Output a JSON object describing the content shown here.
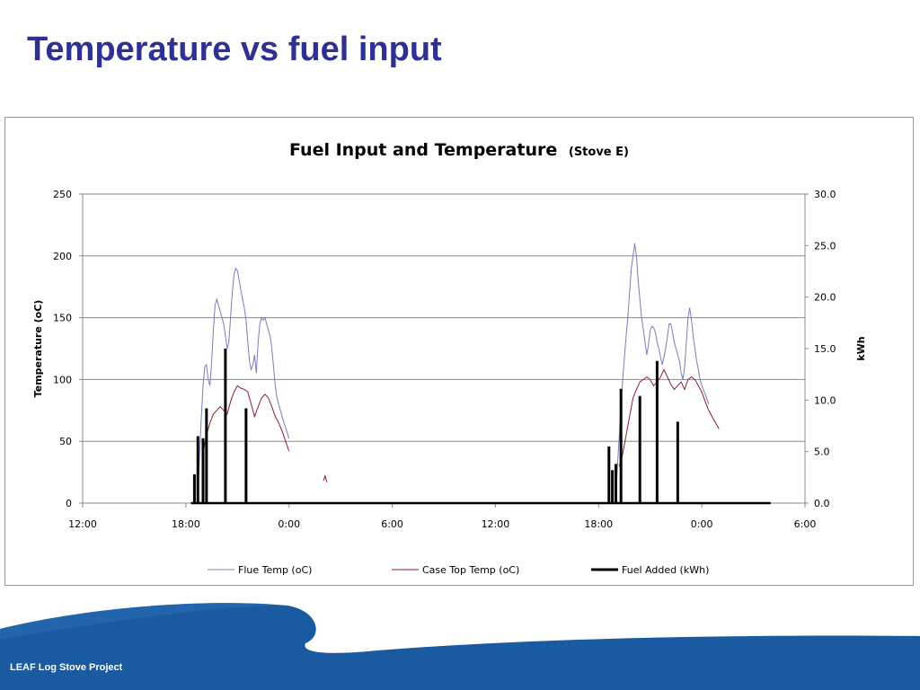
{
  "slide": {
    "title": "Temperature vs fuel input",
    "footer": "LEAF Log Stove Project"
  },
  "colors": {
    "title": "#2e3192",
    "footer_band": "#1a5aa0",
    "footer_band_light": "#1d63ad",
    "flue": "#7b7bb8",
    "case_top": "#8b1a3a",
    "fuel": "#000000",
    "grid": "#888888"
  },
  "chart_data": {
    "type": "line",
    "title": "Fuel Input and Temperature",
    "title_suffix": "(Stove E)",
    "ylabel": "Temperature (oC)",
    "y2label": "kWh",
    "ylim": [
      0,
      250
    ],
    "y2lim": [
      0,
      30
    ],
    "yticks": [
      0,
      50,
      100,
      150,
      200,
      250
    ],
    "y2ticks": [
      "0.0",
      "5.0",
      "10.0",
      "15.0",
      "20.0",
      "25.0",
      "30.0"
    ],
    "xlim_hours": [
      0,
      42
    ],
    "xticks": [
      {
        "h": 0,
        "label": "12:00"
      },
      {
        "h": 6,
        "label": "18:00"
      },
      {
        "h": 12,
        "label": "0:00"
      },
      {
        "h": 18,
        "label": "6:00"
      },
      {
        "h": 24,
        "label": "12:00"
      },
      {
        "h": 30,
        "label": "18:00"
      },
      {
        "h": 36,
        "label": "0:00"
      },
      {
        "h": 42,
        "label": "6:00"
      }
    ],
    "grid": "horizontal",
    "legend_position": "bottom",
    "series": [
      {
        "name": "Flue Temp (oC)",
        "axis": "left",
        "segments": [
          [
            [
              6.7,
              10
            ],
            [
              6.8,
              40
            ],
            [
              6.9,
              70
            ],
            [
              7.0,
              95
            ],
            [
              7.1,
              110
            ],
            [
              7.2,
              112
            ],
            [
              7.3,
              100
            ],
            [
              7.4,
              95
            ],
            [
              7.5,
              115
            ],
            [
              7.6,
              140
            ],
            [
              7.7,
              160
            ],
            [
              7.8,
              165
            ],
            [
              7.9,
              160
            ],
            [
              8.0,
              155
            ],
            [
              8.1,
              150
            ],
            [
              8.2,
              145
            ],
            [
              8.3,
              135
            ],
            [
              8.4,
              125
            ],
            [
              8.5,
              130
            ],
            [
              8.6,
              150
            ],
            [
              8.7,
              170
            ],
            [
              8.8,
              185
            ],
            [
              8.9,
              190
            ],
            [
              9.0,
              188
            ],
            [
              9.1,
              180
            ],
            [
              9.2,
              172
            ],
            [
              9.3,
              165
            ],
            [
              9.4,
              158
            ],
            [
              9.5,
              148
            ],
            [
              9.6,
              130
            ],
            [
              9.7,
              115
            ],
            [
              9.8,
              108
            ],
            [
              9.9,
              112
            ],
            [
              10.0,
              120
            ],
            [
              10.1,
              105
            ],
            [
              10.2,
              130
            ],
            [
              10.3,
              145
            ],
            [
              10.4,
              150
            ],
            [
              10.5,
              148
            ],
            [
              10.6,
              150
            ],
            [
              10.7,
              145
            ],
            [
              10.8,
              140
            ],
            [
              10.9,
              135
            ],
            [
              11.0,
              125
            ],
            [
              11.1,
              110
            ],
            [
              11.2,
              95
            ],
            [
              11.3,
              85
            ],
            [
              11.5,
              75
            ],
            [
              11.7,
              65
            ],
            [
              11.9,
              57
            ],
            [
              12.0,
              52
            ]
          ],
          [
            [
              31.0,
              5
            ],
            [
              31.1,
              30
            ],
            [
              31.2,
              55
            ],
            [
              31.3,
              80
            ],
            [
              31.4,
              100
            ],
            [
              31.5,
              118
            ],
            [
              31.6,
              135
            ],
            [
              31.7,
              150
            ],
            [
              31.8,
              170
            ],
            [
              31.9,
              190
            ],
            [
              32.0,
              200
            ],
            [
              32.1,
              210
            ],
            [
              32.2,
              200
            ],
            [
              32.3,
              180
            ],
            [
              32.4,
              165
            ],
            [
              32.5,
              150
            ],
            [
              32.6,
              140
            ],
            [
              32.7,
              130
            ],
            [
              32.8,
              120
            ],
            [
              32.9,
              128
            ],
            [
              33.0,
              140
            ],
            [
              33.1,
              143
            ],
            [
              33.2,
              142
            ],
            [
              33.3,
              138
            ],
            [
              33.4,
              130
            ],
            [
              33.5,
              125
            ],
            [
              33.6,
              118
            ],
            [
              33.7,
              112
            ],
            [
              33.8,
              118
            ],
            [
              33.9,
              125
            ],
            [
              34.0,
              135
            ],
            [
              34.1,
              145
            ],
            [
              34.2,
              145
            ],
            [
              34.3,
              138
            ],
            [
              34.4,
              130
            ],
            [
              34.5,
              125
            ],
            [
              34.6,
              120
            ],
            [
              34.7,
              115
            ],
            [
              34.8,
              105
            ],
            [
              34.9,
              100
            ],
            [
              35.0,
              110
            ],
            [
              35.1,
              130
            ],
            [
              35.2,
              150
            ],
            [
              35.3,
              158
            ],
            [
              35.4,
              148
            ],
            [
              35.5,
              135
            ],
            [
              35.6,
              125
            ],
            [
              35.7,
              115
            ],
            [
              35.8,
              108
            ],
            [
              35.9,
              100
            ],
            [
              36.0,
              95
            ],
            [
              36.2,
              88
            ],
            [
              36.4,
              80
            ]
          ]
        ]
      },
      {
        "name": "Case Top Temp (oC)",
        "axis": "left",
        "segments": [
          [
            [
              7.0,
              40
            ],
            [
              7.2,
              55
            ],
            [
              7.4,
              65
            ],
            [
              7.6,
              72
            ],
            [
              7.8,
              75
            ],
            [
              8.0,
              78
            ],
            [
              8.2,
              75
            ],
            [
              8.4,
              72
            ],
            [
              8.6,
              82
            ],
            [
              8.8,
              90
            ],
            [
              9.0,
              95
            ],
            [
              9.2,
              93
            ],
            [
              9.4,
              92
            ],
            [
              9.6,
              90
            ],
            [
              9.8,
              80
            ],
            [
              10.0,
              70
            ],
            [
              10.2,
              78
            ],
            [
              10.4,
              85
            ],
            [
              10.6,
              88
            ],
            [
              10.8,
              85
            ],
            [
              11.0,
              78
            ],
            [
              11.2,
              70
            ],
            [
              11.4,
              65
            ],
            [
              11.6,
              58
            ],
            [
              11.8,
              50
            ],
            [
              12.0,
              42
            ]
          ],
          [
            [
              14.0,
              18
            ],
            [
              14.1,
              22
            ],
            [
              14.2,
              17
            ]
          ],
          [
            [
              31.2,
              30
            ],
            [
              31.4,
              40
            ],
            [
              31.6,
              55
            ],
            [
              31.8,
              70
            ],
            [
              32.0,
              85
            ],
            [
              32.2,
              92
            ],
            [
              32.4,
              98
            ],
            [
              32.6,
              100
            ],
            [
              32.8,
              102
            ],
            [
              33.0,
              100
            ],
            [
              33.2,
              95
            ],
            [
              33.4,
              98
            ],
            [
              33.6,
              102
            ],
            [
              33.8,
              108
            ],
            [
              34.0,
              102
            ],
            [
              34.2,
              96
            ],
            [
              34.4,
              92
            ],
            [
              34.6,
              95
            ],
            [
              34.8,
              98
            ],
            [
              35.0,
              92
            ],
            [
              35.2,
              100
            ],
            [
              35.4,
              102
            ],
            [
              35.6,
              100
            ],
            [
              35.8,
              95
            ],
            [
              36.0,
              90
            ],
            [
              36.2,
              82
            ],
            [
              36.4,
              75
            ],
            [
              36.6,
              70
            ],
            [
              36.8,
              65
            ],
            [
              37.0,
              60
            ]
          ]
        ]
      },
      {
        "name": "Fuel Added (kWh)",
        "axis": "right",
        "spikes": [
          [
            6.5,
            2.8
          ],
          [
            6.7,
            6.5
          ],
          [
            7.0,
            6.3
          ],
          [
            7.2,
            9.2
          ],
          [
            8.3,
            15.0
          ],
          [
            9.5,
            9.2
          ],
          [
            30.6,
            5.5
          ],
          [
            30.8,
            3.2
          ],
          [
            31.0,
            3.8
          ],
          [
            31.3,
            11.1
          ],
          [
            32.4,
            10.4
          ],
          [
            33.4,
            13.8
          ],
          [
            34.6,
            7.9
          ]
        ],
        "baseline": [
          6.3,
          40.0
        ]
      }
    ]
  }
}
